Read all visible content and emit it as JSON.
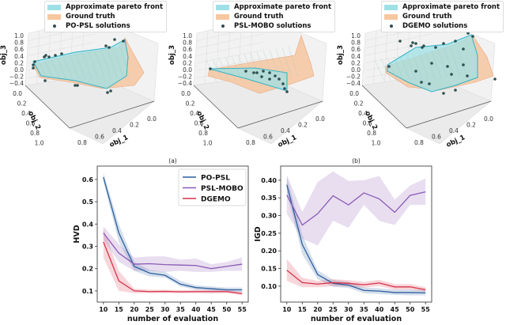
{
  "colors": {
    "approx_front": "#9fe0e6",
    "ground_truth": "#f7c7a0",
    "solutions": "#2f4f4f",
    "po_psl": "#2c5f9e",
    "psl_mobo": "#8a5ab5",
    "dgemo": "#d6334a"
  },
  "surface_plots": [
    {
      "legend": [
        "Approximate pareto front",
        "Ground truth",
        "PO-PSL solutions"
      ],
      "zlabel": "obj_3",
      "ylabel": "obj_2",
      "xlabel": "obj_1",
      "zticks": [
        "1.0",
        "0.8",
        "0.6",
        "0.4",
        "0.2",
        "0.0",
        "−0.2",
        "−0.4"
      ],
      "yticks": [
        "0.0",
        "0.2",
        "0.4",
        "0.6",
        "0.8",
        "1.0"
      ],
      "xticks": [
        "0.0",
        "0.2",
        "0.4",
        "0.6",
        "0.8"
      ]
    },
    {
      "legend": [
        "Approximate pareto front",
        "Ground truth",
        "PSL-MOBO solutions"
      ],
      "zlabel": "obj_3",
      "ylabel": "obj_2",
      "xlabel": "obj_1",
      "zticks": [
        "1.0",
        "0.8",
        "0.6",
        "0.4",
        "0.2",
        "0.0",
        "−0.2",
        "−0.4"
      ],
      "yticks": [
        "0.0",
        "0.2",
        "0.4",
        "0.6",
        "0.8",
        "1.0"
      ],
      "xticks": [
        "0.0",
        "0.2",
        "0.4",
        "0.6",
        "0.8"
      ]
    },
    {
      "legend": [
        "Approximate pareto front",
        "Ground truth",
        "DGEMO solutions"
      ],
      "zlabel": "obj_3",
      "ylabel": "obj_2",
      "xlabel": "obj_1",
      "zticks": [
        "1.0",
        "0.8",
        "0.6",
        "0.4",
        "0.2",
        "0.0",
        "−0.2",
        "−0.4"
      ],
      "yticks": [
        "0.0",
        "0.2",
        "0.4",
        "0.6",
        "0.8",
        "1.0"
      ],
      "xticks": [
        "0.0",
        "0.2",
        "0.4",
        "0.6",
        "0.8"
      ]
    }
  ],
  "chart_data": [
    {
      "type": "line",
      "title": "(a)",
      "xlabel": "number of evaluation",
      "ylabel": "HVD",
      "x": [
        10,
        15,
        20,
        25,
        30,
        35,
        40,
        45,
        50,
        55
      ],
      "xlim": [
        8,
        57
      ],
      "ylim": [
        0.05,
        0.66
      ],
      "yticks": [
        0.1,
        0.2,
        0.3,
        0.4,
        0.5,
        0.6
      ],
      "ytick_labels": [
        "0.1",
        "0.2",
        "0.3",
        "0.4",
        "0.5",
        "0.6"
      ],
      "legend_position": "top-right",
      "series": [
        {
          "name": "PO-PSL",
          "color_key": "po_psl",
          "values": [
            0.61,
            0.36,
            0.21,
            0.18,
            0.17,
            0.13,
            0.115,
            0.11,
            0.105,
            0.105
          ],
          "lower": [
            0.59,
            0.32,
            0.19,
            0.165,
            0.16,
            0.12,
            0.105,
            0.1,
            0.095,
            0.095
          ],
          "upper": [
            0.63,
            0.4,
            0.23,
            0.195,
            0.185,
            0.145,
            0.125,
            0.12,
            0.115,
            0.115
          ]
        },
        {
          "name": "PSL-MOBO",
          "color_key": "psl_mobo",
          "values": [
            0.36,
            0.27,
            0.22,
            0.222,
            0.218,
            0.216,
            0.214,
            0.2,
            0.21,
            0.22
          ],
          "lower": [
            0.33,
            0.23,
            0.19,
            0.19,
            0.185,
            0.19,
            0.185,
            0.185,
            0.19,
            0.19
          ],
          "upper": [
            0.39,
            0.31,
            0.25,
            0.255,
            0.255,
            0.24,
            0.245,
            0.22,
            0.23,
            0.25
          ]
        },
        {
          "name": "DGEMO",
          "color_key": "dgemo",
          "values": [
            0.32,
            0.145,
            0.1,
            0.097,
            0.098,
            0.096,
            0.097,
            0.097,
            0.097,
            0.088
          ],
          "lower": [
            0.25,
            0.1,
            0.09,
            0.09,
            0.09,
            0.09,
            0.09,
            0.088,
            0.09,
            0.08
          ],
          "upper": [
            0.38,
            0.19,
            0.11,
            0.105,
            0.105,
            0.103,
            0.105,
            0.105,
            0.104,
            0.097
          ]
        }
      ]
    },
    {
      "type": "line",
      "title": "(b)",
      "xlabel": "number of evaluation",
      "ylabel": "IGD",
      "x": [
        10,
        15,
        20,
        25,
        30,
        35,
        40,
        45,
        50,
        55
      ],
      "xlim": [
        8,
        57
      ],
      "ylim": [
        0.055,
        0.44
      ],
      "yticks": [
        0.1,
        0.15,
        0.2,
        0.25,
        0.3,
        0.35,
        0.4
      ],
      "ytick_labels": [
        "0.10",
        "0.15",
        "0.20",
        "0.25",
        "0.30",
        "0.35",
        "0.40"
      ],
      "series": [
        {
          "name": "PO-PSL",
          "color_key": "po_psl",
          "values": [
            0.387,
            0.218,
            0.133,
            0.108,
            0.103,
            0.088,
            0.086,
            0.082,
            0.082,
            0.081
          ],
          "lower": [
            0.365,
            0.19,
            0.12,
            0.098,
            0.095,
            0.08,
            0.078,
            0.075,
            0.074,
            0.074
          ],
          "upper": [
            0.41,
            0.245,
            0.145,
            0.118,
            0.112,
            0.097,
            0.094,
            0.09,
            0.09,
            0.089
          ]
        },
        {
          "name": "PSL-MOBO",
          "color_key": "psl_mobo",
          "values": [
            0.358,
            0.273,
            0.305,
            0.356,
            0.33,
            0.364,
            0.347,
            0.309,
            0.357,
            0.367
          ],
          "lower": [
            0.305,
            0.235,
            0.215,
            0.285,
            0.265,
            0.33,
            0.285,
            0.273,
            0.33,
            0.33
          ],
          "upper": [
            0.415,
            0.31,
            0.395,
            0.425,
            0.398,
            0.4,
            0.412,
            0.345,
            0.385,
            0.405
          ]
        },
        {
          "name": "DGEMO",
          "color_key": "dgemo",
          "values": [
            0.145,
            0.11,
            0.106,
            0.11,
            0.108,
            0.104,
            0.109,
            0.098,
            0.098,
            0.09
          ],
          "lower": [
            0.115,
            0.097,
            0.097,
            0.1,
            0.099,
            0.096,
            0.1,
            0.09,
            0.09,
            0.084
          ],
          "upper": [
            0.177,
            0.124,
            0.115,
            0.12,
            0.117,
            0.112,
            0.118,
            0.106,
            0.106,
            0.097
          ]
        }
      ]
    }
  ]
}
